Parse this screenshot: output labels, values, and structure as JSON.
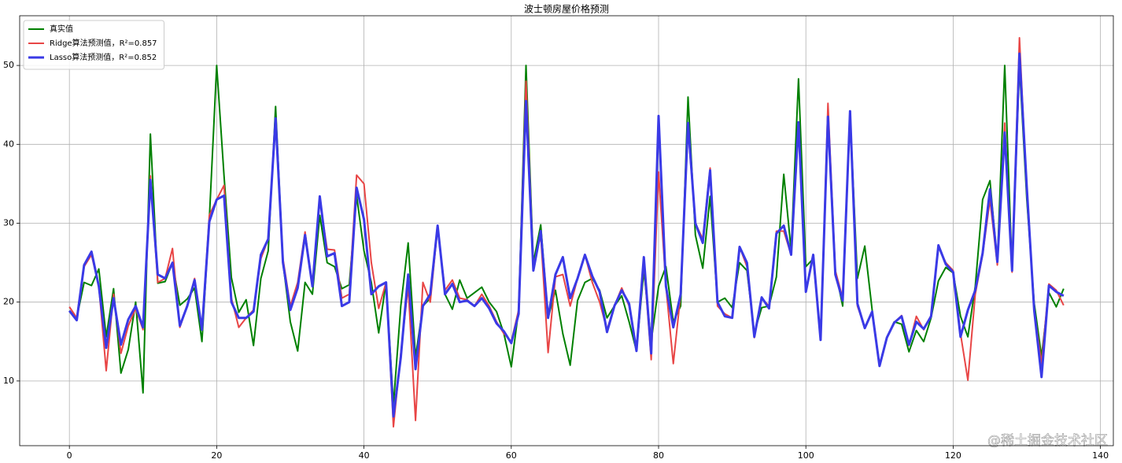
{
  "chart_data": {
    "type": "line",
    "title": "波士顿房屋价格预测",
    "x": [
      0,
      1,
      2,
      3,
      4,
      5,
      6,
      7,
      8,
      9,
      10,
      11,
      12,
      13,
      14,
      15,
      16,
      17,
      18,
      19,
      20,
      21,
      22,
      23,
      24,
      25,
      26,
      27,
      28,
      29,
      30,
      31,
      32,
      33,
      34,
      35,
      36,
      37,
      38,
      39,
      40,
      41,
      42,
      43,
      44,
      45,
      46,
      47,
      48,
      49,
      50,
      51,
      52,
      53,
      54,
      55,
      56,
      57,
      58,
      59,
      60,
      61,
      62,
      63,
      64,
      65,
      66,
      67,
      68,
      69,
      70,
      71,
      72,
      73,
      74,
      75,
      76,
      77,
      78,
      79,
      80,
      81,
      82,
      83,
      84,
      85,
      86,
      87,
      88,
      89,
      90,
      91,
      92,
      93,
      94,
      95,
      96,
      97,
      98,
      99,
      100,
      101,
      102,
      103,
      104,
      105,
      106,
      107,
      108,
      109,
      110,
      111,
      112,
      113,
      114,
      115,
      116,
      117,
      118,
      119,
      120,
      121,
      122,
      123,
      124,
      125,
      126,
      127,
      128,
      129,
      130,
      131,
      132,
      133,
      134,
      135
    ],
    "series": [
      {
        "name": "真实值",
        "color": "#008000",
        "width": 2,
        "values": [
          18.9,
          18.0,
          22.5,
          22.1,
          24.2,
          15.6,
          21.7,
          11.0,
          14.0,
          20.0,
          8.5,
          41.3,
          22.4,
          22.6,
          25.0,
          19.6,
          20.4,
          21.8,
          15.0,
          30.5,
          50.0,
          36.0,
          23.1,
          18.7,
          20.3,
          14.5,
          23.0,
          26.5,
          44.8,
          25.0,
          17.5,
          13.8,
          22.5,
          21.0,
          31.0,
          25.0,
          24.5,
          21.7,
          22.2,
          33.5,
          26.5,
          22.5,
          16.1,
          22.5,
          7.0,
          19.5,
          27.5,
          13.0,
          19.5,
          20.5,
          29.5,
          21.0,
          19.1,
          22.8,
          20.5,
          21.2,
          21.9,
          20.0,
          18.8,
          16.0,
          11.8,
          19.0,
          50.0,
          25.0,
          29.8,
          18.0,
          21.5,
          16.0,
          12.0,
          20.2,
          22.5,
          23.0,
          21.5,
          18.0,
          19.5,
          20.8,
          17.5,
          13.8,
          24.0,
          15.0,
          22.0,
          24.5,
          17.5,
          19.5,
          46.0,
          28.5,
          24.3,
          33.4,
          20.0,
          20.5,
          19.3,
          25.0,
          24.0,
          16.1,
          19.3,
          19.5,
          23.2,
          36.2,
          26.5,
          48.3,
          24.5,
          25.5,
          15.3,
          43.5,
          24.0,
          19.5,
          44.0,
          23.0,
          27.1,
          19.0,
          12.0,
          15.5,
          17.5,
          17.2,
          13.7,
          16.4,
          15.0,
          18.0,
          22.7,
          24.4,
          23.7,
          18.2,
          15.6,
          22.0,
          33.0,
          35.4,
          25.0,
          50.0,
          24.0,
          50.0,
          33.0,
          19.9,
          13.1,
          21.2,
          19.4,
          21.7
        ]
      },
      {
        "name": "Ridge算法预测值，R²=0.857",
        "color": "#e84545",
        "width": 2,
        "values": [
          19.4,
          18.0,
          24.5,
          26.0,
          22.0,
          11.3,
          21.0,
          13.5,
          17.0,
          19.2,
          16.5,
          36.0,
          22.5,
          23.0,
          26.8,
          16.8,
          19.5,
          23.0,
          16.5,
          31.0,
          33.0,
          34.8,
          20.5,
          16.8,
          18.0,
          19.0,
          25.5,
          28.0,
          43.0,
          25.5,
          19.5,
          22.5,
          28.9,
          22.0,
          33.0,
          26.7,
          26.6,
          20.5,
          21.0,
          36.1,
          35.0,
          25.0,
          19.2,
          22.5,
          4.2,
          13.5,
          22.0,
          5.0,
          22.5,
          20.0,
          29.5,
          21.5,
          22.8,
          20.5,
          20.3,
          19.5,
          21.0,
          19.5,
          17.5,
          16.0,
          15.0,
          19.0,
          48.0,
          24.5,
          28.5,
          13.6,
          23.2,
          23.5,
          19.5,
          23.0,
          26.0,
          22.5,
          20.0,
          16.5,
          19.5,
          21.8,
          19.5,
          13.8,
          25.0,
          12.7,
          36.5,
          22.0,
          12.2,
          21.0,
          42.0,
          30.0,
          28.0,
          37.0,
          19.5,
          18.5,
          18.0,
          27.0,
          24.5,
          15.5,
          20.5,
          19.5,
          29.0,
          29.0,
          26.0,
          42.0,
          21.5,
          26.0,
          15.2,
          45.2,
          24.0,
          20.5,
          44.0,
          19.5,
          16.8,
          18.8,
          12.0,
          15.5,
          17.4,
          18.3,
          14.5,
          18.2,
          16.5,
          18.3,
          27.0,
          25.0,
          24.0,
          16.0,
          10.1,
          21.0,
          26.0,
          33.0,
          24.7,
          42.7,
          23.8,
          53.5,
          34.0,
          19.0,
          12.2,
          22.3,
          21.5,
          19.6
        ]
      },
      {
        "name": "Lasso算法预测值，R²=0.852",
        "color": "#3a3ae6",
        "width": 3,
        "values": [
          18.9,
          17.7,
          24.7,
          26.4,
          22.0,
          14.2,
          20.5,
          14.6,
          17.8,
          19.5,
          16.8,
          35.5,
          23.5,
          23.0,
          25.0,
          17.0,
          19.5,
          22.8,
          16.5,
          30.2,
          33.0,
          33.5,
          20.0,
          18.0,
          18.0,
          18.8,
          26.0,
          28.0,
          43.3,
          25.0,
          19.0,
          21.8,
          28.5,
          22.0,
          33.4,
          25.8,
          26.2,
          19.5,
          20.0,
          34.5,
          30.5,
          21.0,
          22.0,
          22.5,
          5.5,
          13.0,
          23.5,
          11.5,
          19.5,
          21.0,
          29.7,
          21.0,
          22.3,
          20.0,
          20.2,
          19.5,
          20.5,
          19.2,
          17.3,
          16.3,
          14.8,
          18.5,
          45.5,
          24.0,
          29.0,
          18.0,
          23.5,
          25.7,
          20.5,
          23.0,
          26.0,
          23.3,
          21.3,
          16.2,
          19.5,
          21.5,
          19.8,
          13.8,
          25.7,
          13.5,
          43.6,
          22.0,
          16.8,
          21.0,
          42.7,
          30.0,
          27.5,
          36.7,
          20.0,
          18.2,
          18.0,
          27.0,
          25.0,
          15.6,
          20.6,
          19.2,
          28.7,
          29.7,
          26.0,
          42.8,
          21.3,
          26.0,
          15.2,
          43.5,
          23.5,
          20.2,
          44.2,
          19.8,
          16.7,
          18.8,
          11.9,
          15.5,
          17.4,
          18.2,
          14.6,
          17.5,
          16.6,
          18.2,
          27.2,
          24.8,
          23.8,
          15.6,
          19.0,
          21.5,
          26.2,
          34.3,
          25.1,
          41.5,
          24.0,
          51.5,
          34.5,
          19.0,
          10.5,
          22.1,
          21.3,
          20.8
        ]
      }
    ],
    "xlim": [
      -6.75,
      141.75
    ],
    "xticks": [
      0,
      20,
      40,
      60,
      80,
      100,
      120,
      140
    ],
    "ylim": [
      1.8,
      56.3
    ],
    "yticks": [
      10,
      20,
      30,
      40,
      50
    ],
    "grid": true,
    "legend": "upper left"
  },
  "watermark": "@稀土掘金技术社区"
}
